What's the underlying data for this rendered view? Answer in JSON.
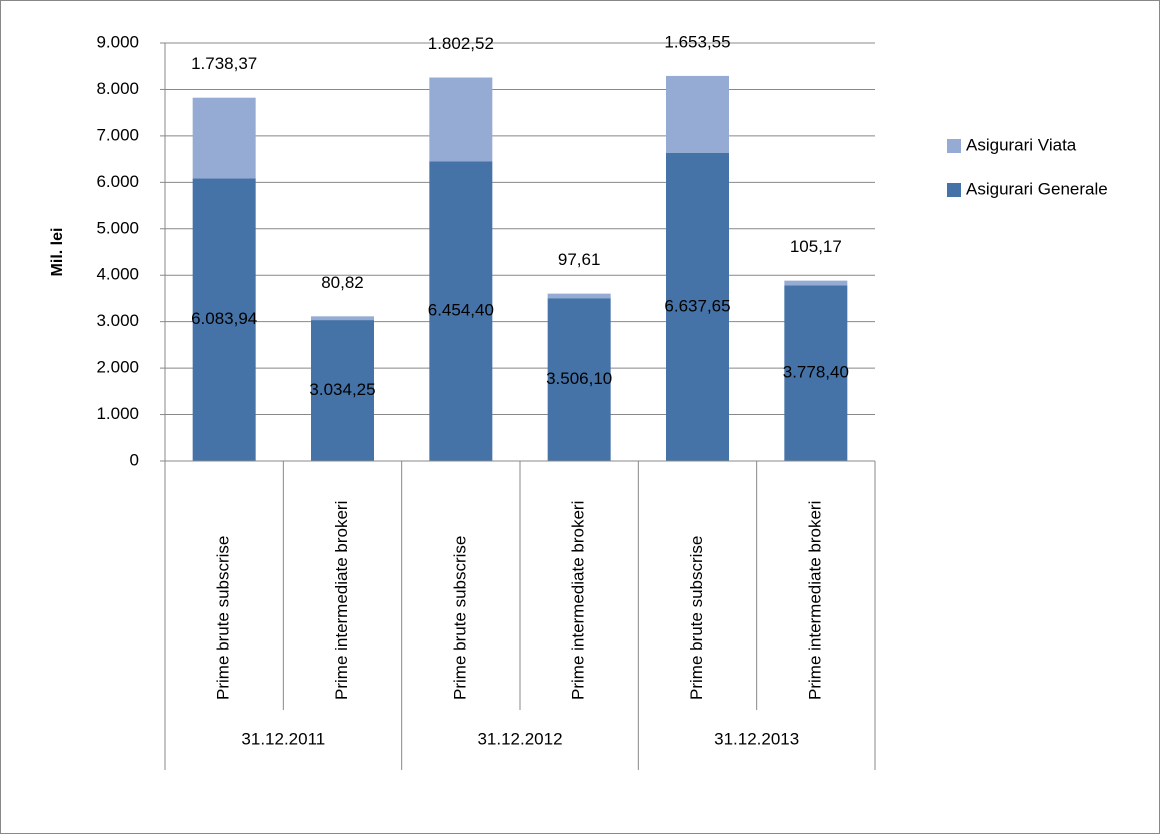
{
  "chart_data": {
    "type": "stacked_bar",
    "y_label": "Mil. lei",
    "categories": [
      "Prime brute subscrise",
      "Prime intermediate brokeri",
      "Prime brute subscrise",
      "Prime intermediate brokeri",
      "Prime brute subscrise",
      "Prime intermediate brokeri"
    ],
    "groups": [
      "31.12.2011",
      "31.12.2012",
      "31.12.2013"
    ],
    "series": [
      {
        "name": "Asigurari Generale",
        "color": "#4573a8",
        "values": [
          6083.94,
          3034.25,
          6454.4,
          3506.1,
          6637.65,
          3778.4
        ],
        "value_labels": [
          "6.083,94",
          "3.034,25",
          "6.454,40",
          "3.506,10",
          "6.637,65",
          "3.778,40"
        ]
      },
      {
        "name": "Asigurari Viata",
        "color": "#95abd3",
        "values": [
          1738.37,
          80.82,
          1802.52,
          97.61,
          1653.55,
          105.17
        ],
        "value_labels": [
          "1.738,37",
          "80,82",
          "1.802,52",
          "97,61",
          "1.653,55",
          "105,17"
        ]
      }
    ],
    "ylim": [
      0,
      9000
    ],
    "yticks": [
      0,
      {
        "value": 1000,
        "label": "1.000"
      },
      {
        "value": 2000,
        "label": "2.000"
      },
      {
        "value": 3000,
        "label": "3.000"
      },
      {
        "value": 4000,
        "label": "4.000"
      },
      {
        "value": 5000,
        "label": "5.000"
      },
      {
        "value": 6000,
        "label": "6.000"
      },
      {
        "value": 7000,
        "label": "7.000"
      },
      {
        "value": 8000,
        "label": "8.000"
      },
      {
        "value": 9000,
        "label": "9.000"
      }
    ],
    "grid": true,
    "legend": "right"
  }
}
